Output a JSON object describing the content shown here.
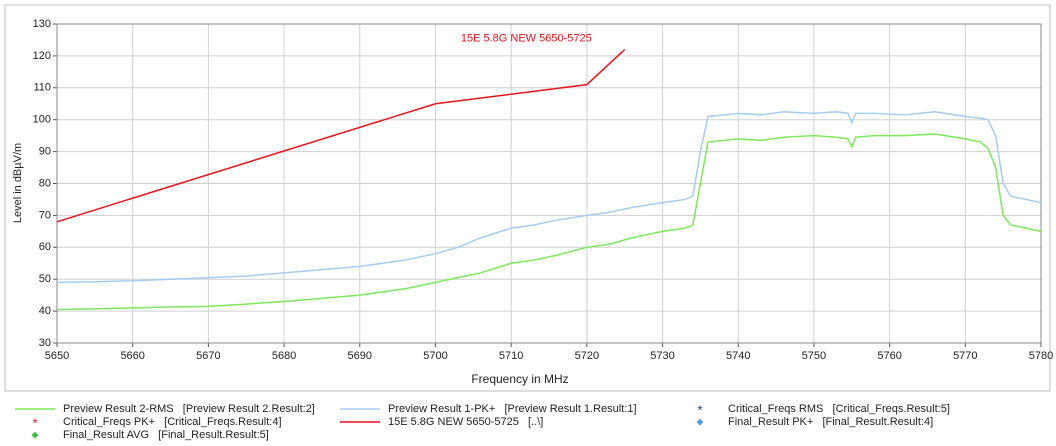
{
  "chart_data": {
    "type": "line",
    "xlabel": "Frequency in MHz",
    "ylabel": "Level in dBµV/m",
    "xlim": [
      5650,
      5780
    ],
    "ylim": [
      30,
      130
    ],
    "xticks": [
      5650,
      5660,
      5670,
      5680,
      5690,
      5700,
      5710,
      5720,
      5730,
      5740,
      5750,
      5760,
      5770,
      5780
    ],
    "yticks": [
      30,
      40,
      50,
      60,
      70,
      80,
      90,
      100,
      110,
      120,
      130
    ],
    "grid": true,
    "annotation": {
      "text": "15E 5.8G NEW 5650-5725",
      "x": 5712,
      "y": 125.5,
      "color": "#e8141a"
    },
    "series": [
      {
        "name": "Preview Result 2-RMS   [Preview Result 2.Result:2]",
        "color": "#7ee85c",
        "x": [
          5650,
          5655,
          5660,
          5665,
          5670,
          5675,
          5680,
          5685,
          5690,
          5693,
          5696,
          5700,
          5703,
          5706,
          5710,
          5713,
          5716,
          5720,
          5723,
          5726,
          5730,
          5733,
          5734,
          5735,
          5736,
          5740,
          5743,
          5746,
          5750,
          5753,
          5754.5,
          5755,
          5755.5,
          5758,
          5762,
          5766,
          5770,
          5772,
          5773,
          5774,
          5775,
          5776,
          5778,
          5780
        ],
        "values": [
          40.5,
          40.7,
          41,
          41.3,
          41.5,
          42.2,
          43,
          44,
          45,
          46,
          47,
          49,
          50.5,
          52,
          55,
          56,
          57.5,
          60,
          61,
          63,
          65,
          66,
          67,
          80,
          93,
          94,
          93.5,
          94.5,
          95,
          94.5,
          94,
          91.5,
          94.5,
          95,
          95,
          95.5,
          94,
          93,
          91,
          85,
          70,
          67,
          66,
          65
        ]
      },
      {
        "name": "Preview Result 1-PK+   [Preview Result 1.Result:1]",
        "color": "#a3cdf4",
        "x": [
          5650,
          5655,
          5660,
          5665,
          5670,
          5675,
          5680,
          5685,
          5690,
          5693,
          5696,
          5700,
          5703,
          5706,
          5710,
          5713,
          5716,
          5720,
          5723,
          5726,
          5730,
          5733,
          5734,
          5735,
          5736,
          5740,
          5743,
          5746,
          5750,
          5753,
          5754.5,
          5755,
          5755.5,
          5758,
          5762,
          5766,
          5770,
          5772,
          5773,
          5774,
          5775,
          5776,
          5778,
          5780
        ],
        "values": [
          49,
          49.2,
          49.5,
          50,
          50.5,
          51,
          52,
          53,
          54,
          55,
          56,
          58,
          60,
          63,
          66,
          67,
          68.5,
          70,
          71,
          72.5,
          74,
          75,
          76,
          90,
          101,
          102,
          101.5,
          102.5,
          102,
          102.5,
          102,
          99,
          102,
          102,
          101.5,
          102.5,
          101,
          100.5,
          100,
          95,
          80,
          76,
          75,
          74
        ]
      },
      {
        "name": "15E 5.8G NEW 5650-5725   [..\\]",
        "color": "#e8141a",
        "x": [
          5650,
          5700,
          5720,
          5725
        ],
        "values": [
          68,
          105,
          111,
          122
        ]
      }
    ],
    "markers": [
      {
        "name": "Critical_Freqs PK+   [Critical_Freqs.Result:4]",
        "color": "#e8141a",
        "symbol": "*"
      },
      {
        "name": "Final_Result AVG   [Final_Result.Result:5]",
        "color": "#3fbf3f",
        "symbol": "◆"
      },
      {
        "name": "Critical_Freqs RMS   [Critical_Freqs.Result:5]",
        "color": "#1a2fa8",
        "symbol": "*"
      },
      {
        "name": "Final_Result PK+   [Final_Result.Result:4]",
        "color": "#4f9de0",
        "symbol": "◆"
      }
    ]
  }
}
